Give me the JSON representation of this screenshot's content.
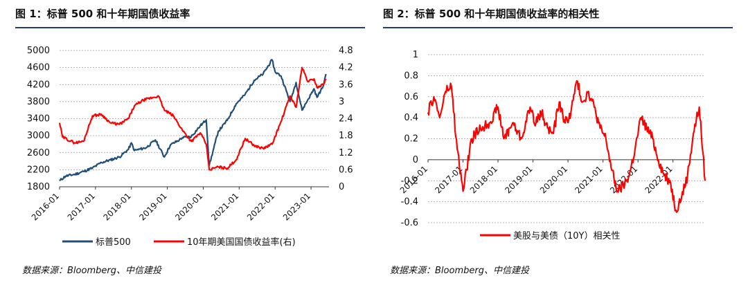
{
  "panels": {
    "left": {
      "title": "图 1：标普 500 和十年期国债收益率",
      "source": "数据来源：Bloomberg、中信建投"
    },
    "right": {
      "title": "图 2：标普 500 和十年期国债收益率的相关性",
      "source": "数据来源：Bloomberg、中信建投"
    }
  },
  "colors": {
    "spx": "#1f4e79",
    "yield": "#ff0000",
    "title_rule": "#1f3d6b",
    "grid": "#999999"
  },
  "chart_data": [
    {
      "type": "line",
      "x_tick_labels": [
        "2016-01",
        "2017-01",
        "2018-01",
        "2019-01",
        "2020-01",
        "2021-01",
        "2022-01",
        "2023-01"
      ],
      "y_left": {
        "ticks": [
          "5000",
          "4600",
          "4200",
          "3800",
          "3400",
          "3000",
          "2600",
          "2200",
          "1800"
        ],
        "ylim": [
          1800,
          5000
        ]
      },
      "y_right": {
        "ticks": [
          "4.8",
          "4.2",
          "3.6",
          "3",
          "2.4",
          "1.8",
          "1.2",
          "0.6",
          "0"
        ],
        "ylim": [
          0,
          4.8
        ]
      },
      "grid": "horizontal dashed",
      "legend_position": "bottom",
      "series": [
        {
          "name": "标普500",
          "axis": "left",
          "x": [
            "2016-01",
            "2016-03",
            "2016-06",
            "2016-09",
            "2016-12",
            "2017-03",
            "2017-06",
            "2017-09",
            "2017-12",
            "2018-01",
            "2018-02",
            "2018-06",
            "2018-09",
            "2018-12",
            "2019-02",
            "2019-05",
            "2019-06",
            "2019-09",
            "2019-12",
            "2020-02",
            "2020-03",
            "2020-06",
            "2020-09",
            "2020-12",
            "2021-03",
            "2021-06",
            "2021-09",
            "2021-12",
            "2022-01",
            "2022-03",
            "2022-06",
            "2022-08",
            "2022-10",
            "2022-12",
            "2023-02",
            "2023-03",
            "2023-05",
            "2023-06"
          ],
          "values": [
            1940,
            2050,
            2090,
            2160,
            2240,
            2370,
            2430,
            2500,
            2680,
            2830,
            2650,
            2720,
            2900,
            2500,
            2780,
            2900,
            2950,
            2980,
            3230,
            3370,
            2300,
            3100,
            3360,
            3750,
            3970,
            4300,
            4450,
            4780,
            4500,
            4400,
            3800,
            4250,
            3600,
            3850,
            4100,
            3900,
            4150,
            4450
          ]
        },
        {
          "name": "10年期美国国债收益率(右)",
          "axis": "right",
          "x": [
            "2016-01",
            "2016-02",
            "2016-06",
            "2016-09",
            "2016-11",
            "2016-12",
            "2017-03",
            "2017-06",
            "2017-09",
            "2017-12",
            "2018-02",
            "2018-05",
            "2018-10",
            "2018-12",
            "2019-03",
            "2019-06",
            "2019-09",
            "2019-12",
            "2020-02",
            "2020-03",
            "2020-06",
            "2020-09",
            "2020-12",
            "2021-03",
            "2021-06",
            "2021-09",
            "2021-12",
            "2022-03",
            "2022-06",
            "2022-08",
            "2022-10",
            "2022-12",
            "2023-02",
            "2023-03",
            "2023-05",
            "2023-06"
          ],
          "values": [
            2.25,
            1.75,
            1.55,
            1.6,
            2.2,
            2.5,
            2.55,
            2.25,
            2.2,
            2.4,
            2.85,
            3.05,
            3.2,
            2.7,
            2.5,
            2.0,
            1.6,
            1.9,
            1.5,
            0.6,
            0.7,
            0.65,
            0.95,
            1.7,
            1.45,
            1.35,
            1.5,
            2.3,
            3.2,
            2.8,
            4.2,
            3.7,
            3.8,
            3.5,
            3.6,
            3.8
          ]
        }
      ]
    },
    {
      "type": "line",
      "x_tick_labels": [
        "2016-01",
        "2017-01",
        "2018-01",
        "2019-01",
        "2020-01",
        "2021-01",
        "2022-01",
        "2022-01"
      ],
      "y": {
        "ticks": [
          "1",
          "0.8",
          "0.6",
          "0.4",
          "0.2",
          "0",
          "-0.2",
          "-0.4",
          "-0.6"
        ],
        "ylim": [
          -0.6,
          1
        ]
      },
      "grid": "horizontal dashed",
      "legend_position": "bottom",
      "series": [
        {
          "name": "美股与美债（10Y）相关性",
          "x": [
            "2016-01",
            "2016-03",
            "2016-05",
            "2016-07",
            "2016-09",
            "2016-11",
            "2017-01",
            "2017-04",
            "2017-07",
            "2017-10",
            "2018-01",
            "2018-03",
            "2018-06",
            "2018-09",
            "2018-12",
            "2019-02",
            "2019-04",
            "2019-06",
            "2019-08",
            "2019-10",
            "2019-12",
            "2020-02",
            "2020-04",
            "2020-06",
            "2020-08",
            "2020-10",
            "2020-12",
            "2021-02",
            "2021-04",
            "2021-06",
            "2021-08",
            "2021-10",
            "2021-12",
            "2022-02",
            "2022-04",
            "2022-06",
            "2022-08",
            "2022-10",
            "2022-12",
            "2023-02",
            "2023-04",
            "2023-06",
            "2023-08",
            "2023-10",
            "2023-12"
          ],
          "values": [
            0.45,
            0.6,
            0.4,
            0.65,
            0.7,
            0.1,
            -0.3,
            0.2,
            0.3,
            0.35,
            0.5,
            0.2,
            0.35,
            0.2,
            0.5,
            0.35,
            0.45,
            0.3,
            0.25,
            0.55,
            0.35,
            0.45,
            0.75,
            0.55,
            0.65,
            0.5,
            0.3,
            0.2,
            -0.1,
            -0.3,
            -0.25,
            -0.15,
            0.1,
            0.4,
            0.3,
            0.2,
            0.0,
            -0.15,
            -0.2,
            -0.48,
            -0.35,
            -0.15,
            0.25,
            0.5,
            -0.2
          ]
        }
      ]
    }
  ]
}
